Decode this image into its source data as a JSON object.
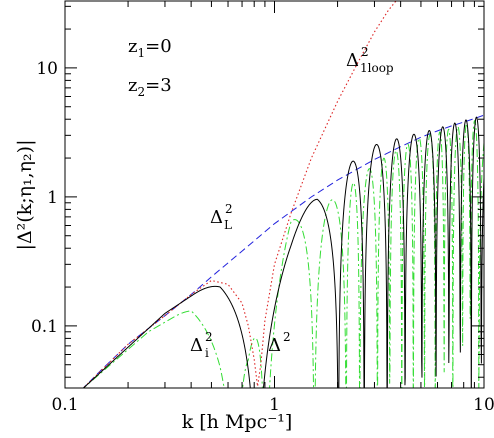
{
  "chart_data": {
    "type": "line",
    "x_scale": "log",
    "y_scale": "log",
    "xlim": [
      0.1,
      10
    ],
    "ylim": [
      0.033,
      33
    ],
    "grid": false,
    "xlabel": "k [h Mpc⁻¹]",
    "ylabel": "|Δ²(k;η₁,η₂)|",
    "x_ticks": [
      {
        "value": 0.1,
        "label": "0.1"
      },
      {
        "value": 1,
        "label": "1"
      },
      {
        "value": 10,
        "label": "10"
      }
    ],
    "y_ticks": [
      {
        "value": 0.1,
        "label": "0.1"
      },
      {
        "value": 1,
        "label": "1"
      },
      {
        "value": 10,
        "label": "10"
      }
    ],
    "annotations": {
      "z1": {
        "base": "z",
        "sub": "1",
        "rest": "=0"
      },
      "z2": {
        "base": "z",
        "sub": "2",
        "rest": "=3"
      },
      "delta_1loop": {
        "base": "Δ",
        "sup": "2",
        "sub": "1loop"
      },
      "delta_L": {
        "base": "Δ",
        "sup": "2",
        "sub": "L"
      },
      "delta_i": {
        "base": "Δ",
        "sup": "2",
        "sub": "i"
      },
      "delta": {
        "base": "Δ",
        "sup": "2"
      }
    },
    "series": [
      {
        "key": "linear",
        "style": "dashed",
        "color": "#2222dd",
        "x": [
          0.12,
          0.15,
          0.2,
          0.3,
          0.4,
          0.5,
          0.7,
          1.0,
          1.5,
          2.0,
          3.0,
          4.0,
          5.0,
          6.0,
          7.0,
          8.0,
          9.0,
          10.0
        ],
        "y": [
          0.032,
          0.046,
          0.072,
          0.12,
          0.175,
          0.24,
          0.38,
          0.62,
          1.0,
          1.35,
          1.95,
          2.45,
          2.9,
          3.25,
          3.55,
          3.8,
          4.05,
          4.3
        ]
      },
      {
        "key": "one_loop",
        "style": "dotted",
        "color": "#dd2222",
        "x": [
          0.12,
          0.2,
          0.3,
          0.4,
          0.5,
          0.6,
          0.7,
          0.75,
          0.8,
          0.83,
          0.86,
          0.9,
          1.0,
          1.2,
          1.5,
          2.0,
          2.5,
          3.0,
          3.5,
          3.8
        ],
        "y": [
          0.032,
          0.072,
          0.12,
          0.175,
          0.225,
          0.21,
          0.15,
          0.1,
          0.055,
          0.034,
          0.05,
          0.11,
          0.3,
          0.75,
          2.0,
          5.5,
          11,
          19,
          28,
          33
        ]
      },
      {
        "key": "total",
        "style": "solid",
        "color": "#000000",
        "envelope_x": [
          0.12,
          0.3,
          0.55,
          0.8,
          1.2,
          1.6,
          2.2,
          2.8,
          3.5,
          4.2,
          5.2,
          6.2,
          7.5,
          8.7,
          10.0
        ],
        "envelope_y": [
          0.032,
          0.125,
          0.24,
          0.22,
          0.52,
          1.1,
          1.7,
          2.45,
          2.7,
          2.95,
          3.2,
          3.45,
          3.8,
          4.05,
          4.3
        ],
        "zeros": [
          0.82,
          2.02,
          2.68,
          3.45,
          4.2,
          5.05,
          5.9,
          6.8,
          7.7,
          8.7,
          9.7
        ]
      },
      {
        "key": "interference",
        "style": "dash-dot",
        "color": "#33dd33",
        "envelope_x": [
          0.12,
          0.25,
          0.4,
          0.55,
          0.75,
          1.2,
          2.0,
          3.0,
          4.0,
          5.0,
          6.0,
          7.5,
          9.0,
          10.0
        ],
        "envelope_y": [
          0.032,
          0.09,
          0.14,
          0.11,
          0.06,
          0.65,
          1.0,
          1.8,
          2.4,
          2.9,
          3.15,
          3.5,
          3.9,
          4.1
        ],
        "zeros": [
          0.66,
          0.9,
          1.55,
          2.2,
          2.55,
          3.1,
          3.55,
          4.05,
          4.6,
          5.2,
          5.85,
          6.45,
          7.1,
          7.9,
          8.6,
          9.45
        ]
      }
    ]
  }
}
